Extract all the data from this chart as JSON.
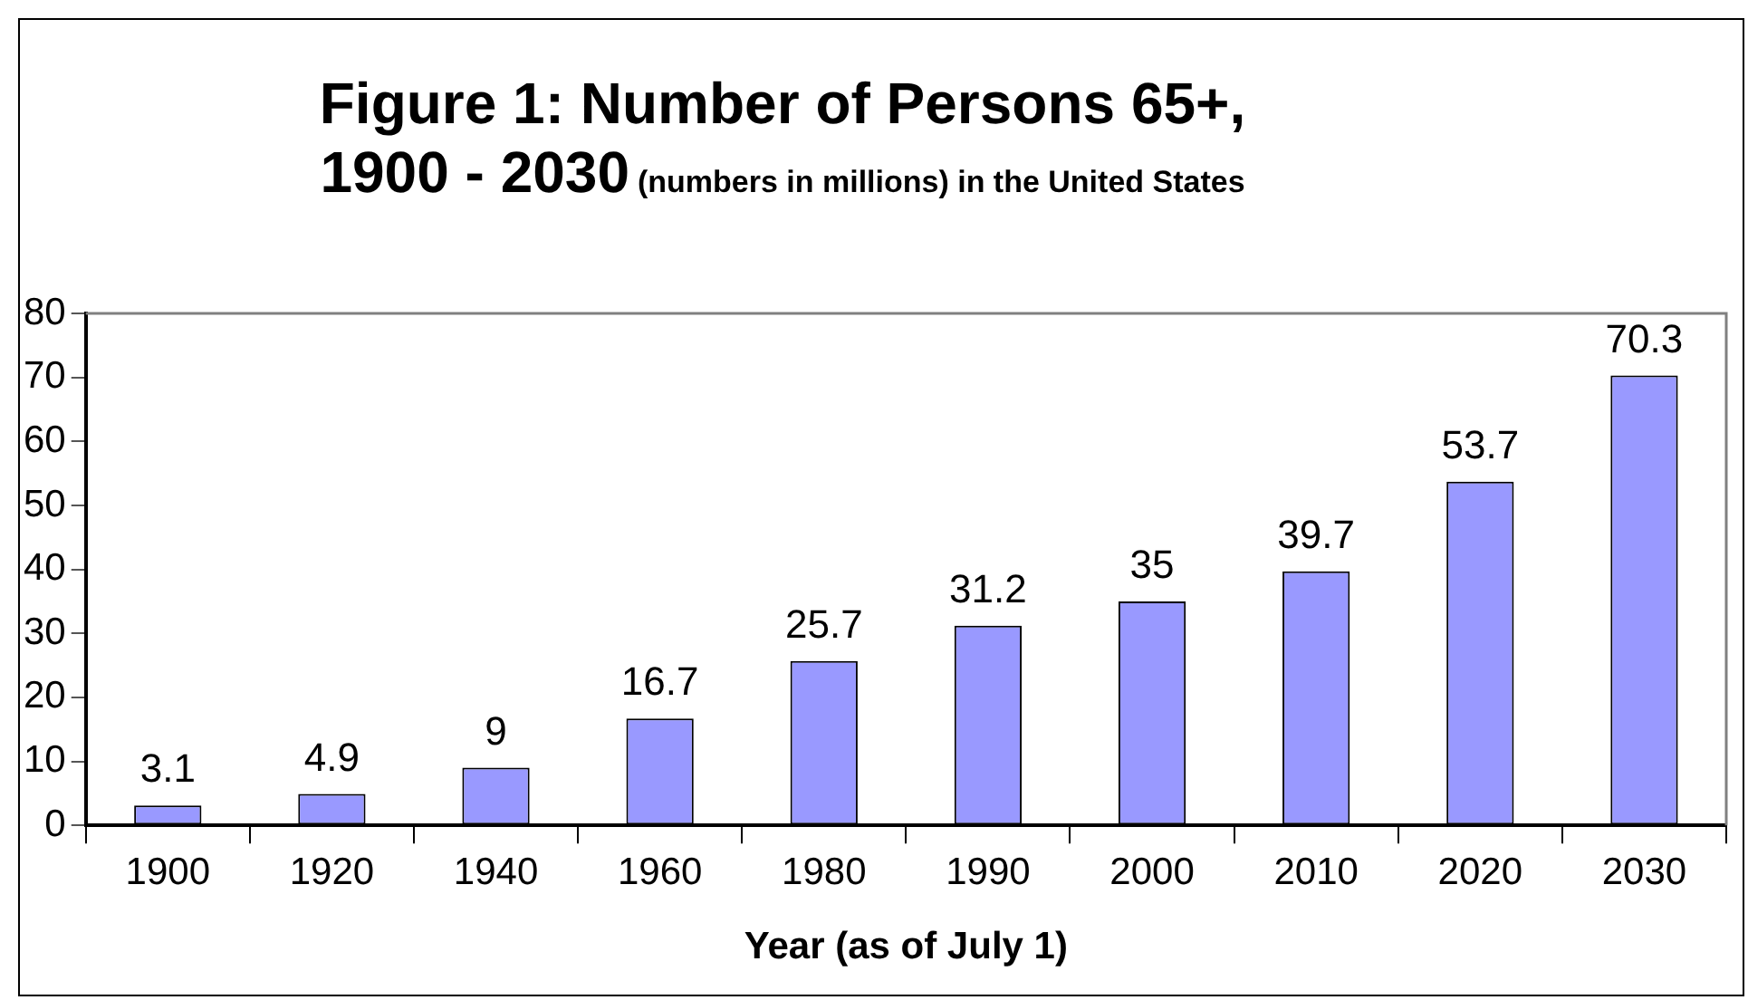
{
  "chart_data": {
    "type": "bar",
    "title": "Figure 1: Number of Persons 65+, 1900 - 2030",
    "subtitle": "(numbers in millions) in the United States",
    "xlabel": "Year (as of July 1)",
    "categories": [
      "1900",
      "1920",
      "1940",
      "1960",
      "1980",
      "1990",
      "2000",
      "2010",
      "2020",
      "2030"
    ],
    "values": [
      3.1,
      4.9,
      9,
      16.7,
      25.7,
      31.2,
      35,
      39.7,
      53.7,
      70.3
    ],
    "color": "#9999ff",
    "ylim": [
      0,
      80
    ],
    "yticks": [
      0,
      10,
      20,
      30,
      40,
      50,
      60,
      70,
      80
    ],
    "grid": false,
    "legend": false,
    "data_labels": true
  }
}
